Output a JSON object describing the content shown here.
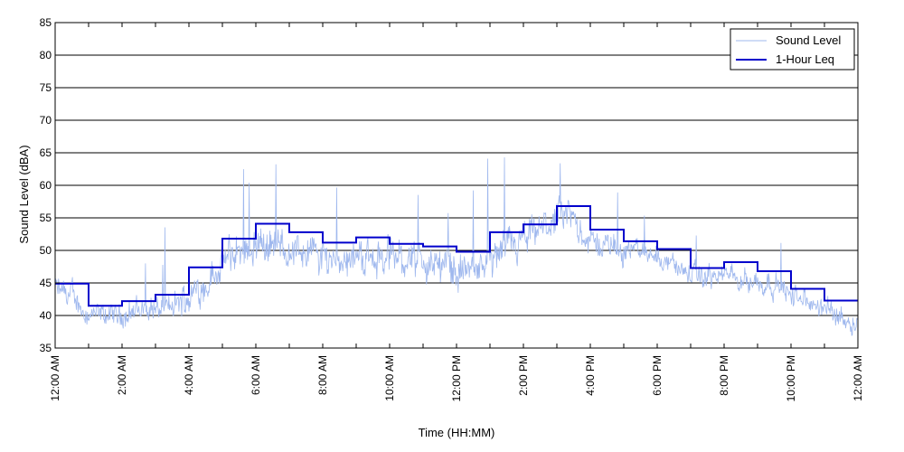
{
  "chart_data": {
    "type": "line",
    "title": "",
    "xlabel": "Time (HH:MM)",
    "ylabel": "Sound Level (dBA)",
    "xlim": [
      0,
      24
    ],
    "ylim": [
      35,
      85
    ],
    "x_tick_labels": [
      "12:00 AM",
      "2:00 AM",
      "4:00 AM",
      "6:00 AM",
      "8:00 AM",
      "10:00 AM",
      "12:00 PM",
      "2:00 PM",
      "4:00 PM",
      "6:00 PM",
      "8:00 PM",
      "10:00 PM",
      "12:00 AM"
    ],
    "y_ticks": [
      35,
      40,
      45,
      50,
      55,
      60,
      65,
      70,
      75,
      80,
      85
    ],
    "grid": "horizontal",
    "legend_position": "top-right",
    "series": [
      {
        "name": "Sound Level",
        "kind": "noisy",
        "color": "#9fb8ee",
        "x_hours": [
          0,
          0.5,
          1,
          1.5,
          2,
          2.5,
          3,
          3.5,
          4,
          4.5,
          5,
          5.5,
          6,
          6.5,
          7,
          7.5,
          8,
          8.5,
          9,
          9.5,
          10,
          10.5,
          11,
          11.5,
          12,
          12.5,
          13,
          13.5,
          14,
          14.5,
          15,
          15.5,
          16,
          16.5,
          17,
          17.5,
          18,
          18.5,
          19,
          19.5,
          20,
          20.5,
          21,
          21.5,
          22,
          22.5,
          23,
          23.5,
          24
        ],
        "mean": [
          44,
          43,
          40,
          40,
          40,
          41,
          41,
          41,
          43,
          45,
          48,
          50,
          51,
          51,
          50,
          50,
          49,
          49,
          49,
          49,
          49,
          49,
          48,
          48,
          47,
          47,
          48,
          50,
          51,
          53,
          55,
          55,
          51,
          51,
          50,
          50,
          49,
          48,
          46,
          46,
          46,
          46,
          45,
          45,
          43,
          42,
          41,
          40,
          39
        ],
        "spread": [
          3,
          3,
          2.5,
          2.5,
          2.5,
          3,
          3,
          3,
          4,
          4,
          4,
          4,
          4,
          4,
          4,
          4,
          4,
          4,
          4,
          4,
          4,
          4,
          4,
          4,
          4,
          4,
          4,
          4,
          4,
          4,
          3.5,
          3.5,
          3,
          3,
          2.5,
          2.5,
          2.5,
          2.5,
          2.5,
          2.5,
          2.5,
          2.5,
          2.5,
          2.5,
          2.5,
          2.5,
          2.5,
          2.5,
          2.5
        ]
      },
      {
        "name": "1-Hour Leq",
        "kind": "step",
        "color": "#0000cc",
        "hour_start": [
          0,
          1,
          2,
          3,
          4,
          5,
          6,
          7,
          8,
          9,
          10,
          11,
          12,
          13,
          14,
          15,
          16,
          17,
          18,
          19,
          20,
          21,
          22,
          23
        ],
        "values": [
          44.9,
          41.5,
          42.2,
          43.2,
          47.4,
          51.8,
          54.1,
          52.8,
          51.2,
          52.0,
          51.0,
          50.6,
          49.8,
          52.8,
          54.0,
          56.8,
          53.2,
          51.4,
          50.2,
          47.3,
          48.2,
          46.8,
          44.1,
          42.3
        ]
      }
    ]
  }
}
